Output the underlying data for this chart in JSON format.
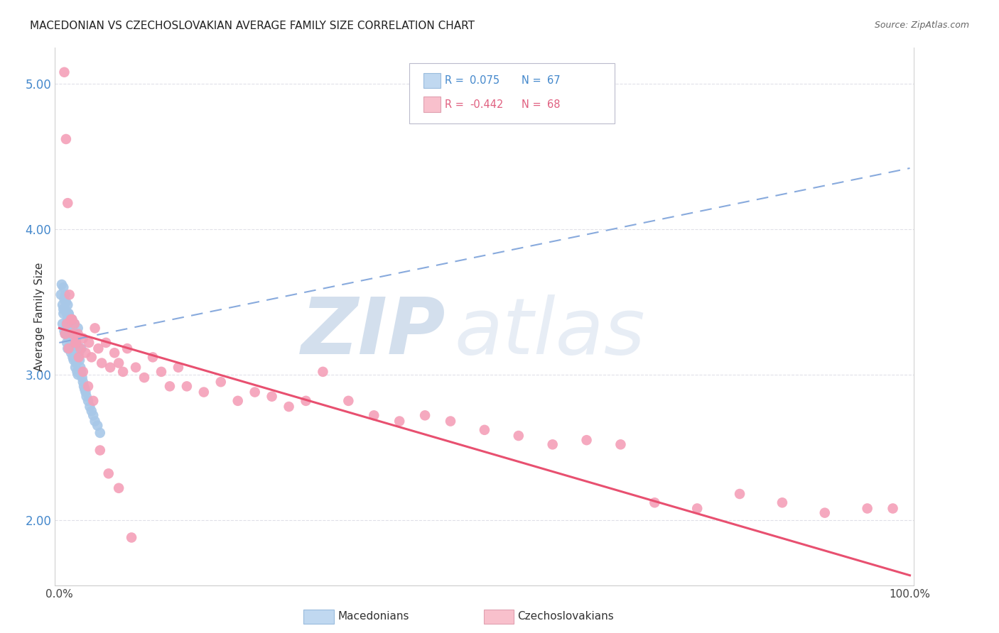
{
  "title": "MACEDONIAN VS CZECHOSLOVAKIAN AVERAGE FAMILY SIZE CORRELATION CHART",
  "source": "Source: ZipAtlas.com",
  "ylabel": "Average Family Size",
  "ylim": [
    1.55,
    5.25
  ],
  "xlim": [
    -0.005,
    1.005
  ],
  "yticks": [
    2.0,
    3.0,
    4.0,
    5.0
  ],
  "blue_R": 0.075,
  "blue_N": 67,
  "pink_R": -0.442,
  "pink_N": 68,
  "blue_marker_color": "#a8c8e8",
  "pink_marker_color": "#f4a0b8",
  "blue_line_color": "#88aadd",
  "pink_line_color": "#e85070",
  "blue_swatch_face": "#c0d8f0",
  "pink_swatch_face": "#f8c0cc",
  "blue_swatch_edge": "#99bbdd",
  "pink_swatch_edge": "#e0a0b0",
  "background": "#ffffff",
  "grid_color": "#e0e0e8",
  "title_color": "#222222",
  "right_tick_color": "#4488cc",
  "blue_x": [
    0.002,
    0.003,
    0.004,
    0.004,
    0.005,
    0.005,
    0.006,
    0.006,
    0.007,
    0.007,
    0.008,
    0.008,
    0.009,
    0.009,
    0.01,
    0.01,
    0.01,
    0.011,
    0.011,
    0.012,
    0.012,
    0.013,
    0.013,
    0.014,
    0.014,
    0.015,
    0.015,
    0.016,
    0.016,
    0.017,
    0.017,
    0.018,
    0.018,
    0.019,
    0.019,
    0.02,
    0.02,
    0.021,
    0.021,
    0.022,
    0.022,
    0.023,
    0.024,
    0.025,
    0.026,
    0.027,
    0.028,
    0.029,
    0.03,
    0.031,
    0.032,
    0.034,
    0.036,
    0.038,
    0.04,
    0.042,
    0.045,
    0.048,
    0.005,
    0.007,
    0.009,
    0.011,
    0.013,
    0.015,
    0.018,
    0.022,
    0.026
  ],
  "blue_y": [
    3.55,
    3.62,
    3.48,
    3.35,
    3.6,
    3.42,
    3.52,
    3.3,
    3.45,
    3.28,
    3.5,
    3.32,
    3.42,
    3.22,
    3.48,
    3.38,
    3.18,
    3.42,
    3.25,
    3.4,
    3.18,
    3.38,
    3.2,
    3.35,
    3.15,
    3.32,
    3.22,
    3.3,
    3.12,
    3.28,
    3.1,
    3.25,
    3.35,
    3.22,
    3.05,
    3.25,
    3.08,
    3.2,
    3.02,
    3.18,
    3.0,
    3.15,
    3.1,
    3.05,
    3.02,
    2.98,
    2.95,
    2.92,
    2.9,
    2.88,
    2.85,
    2.82,
    2.78,
    2.75,
    2.72,
    2.68,
    2.65,
    2.6,
    3.45,
    3.55,
    3.35,
    3.42,
    3.28,
    3.38,
    3.22,
    3.32,
    3.18
  ],
  "pink_x": [
    0.006,
    0.008,
    0.01,
    0.012,
    0.014,
    0.016,
    0.018,
    0.02,
    0.022,
    0.025,
    0.028,
    0.031,
    0.035,
    0.038,
    0.042,
    0.046,
    0.05,
    0.055,
    0.06,
    0.065,
    0.07,
    0.075,
    0.08,
    0.09,
    0.1,
    0.11,
    0.12,
    0.13,
    0.14,
    0.15,
    0.17,
    0.19,
    0.21,
    0.23,
    0.25,
    0.27,
    0.29,
    0.31,
    0.34,
    0.37,
    0.4,
    0.43,
    0.46,
    0.5,
    0.54,
    0.58,
    0.62,
    0.66,
    0.7,
    0.75,
    0.8,
    0.85,
    0.9,
    0.95,
    0.007,
    0.009,
    0.011,
    0.015,
    0.019,
    0.023,
    0.028,
    0.034,
    0.04,
    0.048,
    0.058,
    0.07,
    0.085,
    0.98
  ],
  "pink_y": [
    5.08,
    4.62,
    4.18,
    3.55,
    3.38,
    3.28,
    3.35,
    3.22,
    3.28,
    3.18,
    3.25,
    3.15,
    3.22,
    3.12,
    3.32,
    3.18,
    3.08,
    3.22,
    3.05,
    3.15,
    3.08,
    3.02,
    3.18,
    3.05,
    2.98,
    3.12,
    3.02,
    2.92,
    3.05,
    2.92,
    2.88,
    2.95,
    2.82,
    2.88,
    2.85,
    2.78,
    2.82,
    3.02,
    2.82,
    2.72,
    2.68,
    2.72,
    2.68,
    2.62,
    2.58,
    2.52,
    2.55,
    2.52,
    2.12,
    2.08,
    2.18,
    2.12,
    2.05,
    2.08,
    3.28,
    3.35,
    3.18,
    3.38,
    3.22,
    3.12,
    3.02,
    2.92,
    2.82,
    2.48,
    2.32,
    2.22,
    1.88,
    2.08
  ],
  "blue_trend_x0": 0.0,
  "blue_trend_y0": 3.22,
  "blue_trend_x1": 1.0,
  "blue_trend_y1": 4.42,
  "pink_trend_x0": 0.0,
  "pink_trend_y0": 3.32,
  "pink_trend_x1": 1.0,
  "pink_trend_y1": 1.62
}
